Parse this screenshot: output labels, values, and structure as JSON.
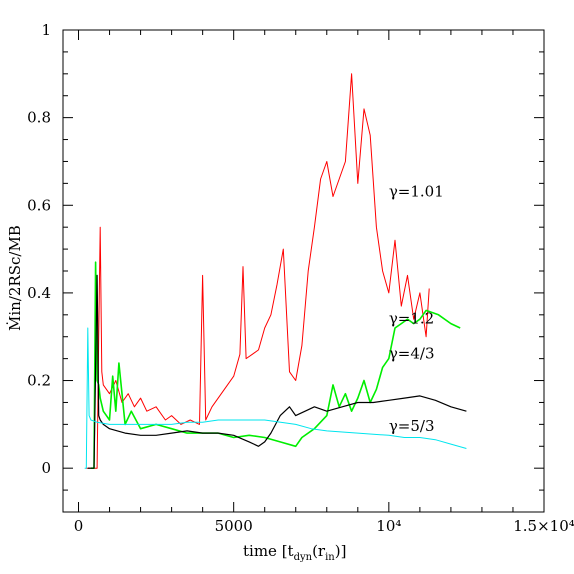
{
  "chart_data": {
    "type": "line",
    "xlabel": "time [t",
    "xlabel_sub1": "dyn",
    "xlabel_mid": "(r",
    "xlabel_sub2": "in",
    "xlabel_end": ")]",
    "ylabel": "Ṁin/2RSc/MB",
    "xlim": [
      -500,
      15000
    ],
    "ylim": [
      -0.1,
      1.0
    ],
    "xticks": [
      {
        "value": 0,
        "label": "0"
      },
      {
        "value": 5000,
        "label": "5000"
      },
      {
        "value": 10000,
        "label": "10⁴"
      },
      {
        "value": 15000,
        "label": "1.5×10⁴"
      }
    ],
    "yticks": [
      {
        "value": 0,
        "label": "0"
      },
      {
        "value": 0.2,
        "label": "0.2"
      },
      {
        "value": 0.4,
        "label": "0.4"
      },
      {
        "value": 0.6,
        "label": "0.6"
      },
      {
        "value": 0.8,
        "label": "0.8"
      },
      {
        "value": 1.0,
        "label": "1"
      }
    ],
    "series": [
      {
        "name": "γ=1.01",
        "color": "#ff0000",
        "label_at": [
          10000,
          0.62
        ],
        "x": [
          250,
          500,
          600,
          650,
          700,
          750,
          800,
          900,
          1000,
          1200,
          1400,
          1600,
          1800,
          2000,
          2200,
          2500,
          2800,
          3000,
          3300,
          3600,
          3900,
          4000,
          4100,
          4300,
          4500,
          4800,
          5000,
          5200,
          5300,
          5400,
          5600,
          5800,
          6000,
          6200,
          6400,
          6600,
          6800,
          7000,
          7200,
          7400,
          7600,
          7800,
          8000,
          8200,
          8400,
          8600,
          8800,
          9000,
          9200,
          9400,
          9600,
          9800,
          10000,
          10200,
          10400,
          10600,
          10800,
          11000,
          11200,
          11300
        ],
        "y": [
          0.0,
          0.0,
          0.0,
          0.3,
          0.55,
          0.22,
          0.19,
          0.18,
          0.17,
          0.2,
          0.15,
          0.17,
          0.14,
          0.16,
          0.13,
          0.14,
          0.11,
          0.12,
          0.1,
          0.11,
          0.1,
          0.44,
          0.11,
          0.14,
          0.16,
          0.19,
          0.21,
          0.26,
          0.46,
          0.25,
          0.26,
          0.27,
          0.32,
          0.35,
          0.42,
          0.5,
          0.22,
          0.2,
          0.28,
          0.45,
          0.55,
          0.66,
          0.7,
          0.62,
          0.66,
          0.7,
          0.9,
          0.65,
          0.82,
          0.76,
          0.55,
          0.45,
          0.4,
          0.52,
          0.37,
          0.44,
          0.34,
          0.4,
          0.3,
          0.41
        ]
      },
      {
        "name": "γ=1.2",
        "color": "#00ee00",
        "label_at": [
          10000,
          0.33
        ],
        "x": [
          400,
          500,
          550,
          600,
          650,
          700,
          800,
          900,
          1000,
          1100,
          1200,
          1300,
          1500,
          1700,
          2000,
          2500,
          3000,
          3500,
          4000,
          4500,
          5000,
          5500,
          6000,
          6500,
          7000,
          7200,
          7600,
          8000,
          8200,
          8400,
          8600,
          8800,
          9000,
          9200,
          9400,
          9600,
          9800,
          10000,
          10200,
          10400,
          10600,
          10800,
          11000,
          11200,
          11600,
          12000,
          12300
        ],
        "y": [
          0.0,
          0.0,
          0.47,
          0.2,
          0.19,
          0.16,
          0.13,
          0.12,
          0.11,
          0.21,
          0.13,
          0.24,
          0.1,
          0.13,
          0.09,
          0.1,
          0.09,
          0.08,
          0.08,
          0.08,
          0.07,
          0.075,
          0.07,
          0.06,
          0.05,
          0.07,
          0.09,
          0.12,
          0.19,
          0.14,
          0.17,
          0.13,
          0.16,
          0.2,
          0.15,
          0.18,
          0.23,
          0.25,
          0.32,
          0.33,
          0.34,
          0.33,
          0.34,
          0.36,
          0.35,
          0.33,
          0.32
        ]
      },
      {
        "name": "γ=4/3",
        "color": "#000000",
        "label_at": [
          10000,
          0.25
        ],
        "x": [
          300,
          500,
          600,
          650,
          700,
          800,
          1000,
          1500,
          2000,
          2500,
          3000,
          3500,
          4000,
          4500,
          5000,
          5500,
          5800,
          6000,
          6200,
          6500,
          6800,
          7000,
          7300,
          7600,
          8000,
          8500,
          9000,
          9500,
          10000,
          10500,
          11000,
          11500,
          12000,
          12500
        ],
        "y": [
          0.0,
          0.0,
          0.44,
          0.12,
          0.11,
          0.1,
          0.09,
          0.08,
          0.075,
          0.075,
          0.08,
          0.085,
          0.08,
          0.08,
          0.075,
          0.06,
          0.05,
          0.06,
          0.08,
          0.12,
          0.14,
          0.12,
          0.13,
          0.14,
          0.13,
          0.14,
          0.15,
          0.15,
          0.155,
          0.16,
          0.165,
          0.155,
          0.14,
          0.13
        ]
      },
      {
        "name": "γ=5/3",
        "color": "#00e5ee",
        "label_at": [
          10000,
          0.085
        ],
        "x": [
          200,
          250,
          300,
          340,
          400,
          600,
          1000,
          1500,
          2000,
          2500,
          3000,
          3500,
          4000,
          4500,
          5000,
          5500,
          6000,
          7000,
          7500,
          8000,
          9000,
          10000,
          10500,
          11000,
          11500,
          12000,
          12500
        ],
        "y": [
          0.0,
          0.0,
          0.32,
          0.12,
          0.11,
          0.105,
          0.1,
          0.1,
          0.1,
          0.1,
          0.1,
          0.105,
          0.105,
          0.11,
          0.11,
          0.11,
          0.11,
          0.1,
          0.09,
          0.085,
          0.08,
          0.075,
          0.07,
          0.07,
          0.065,
          0.055,
          0.045
        ]
      }
    ]
  }
}
